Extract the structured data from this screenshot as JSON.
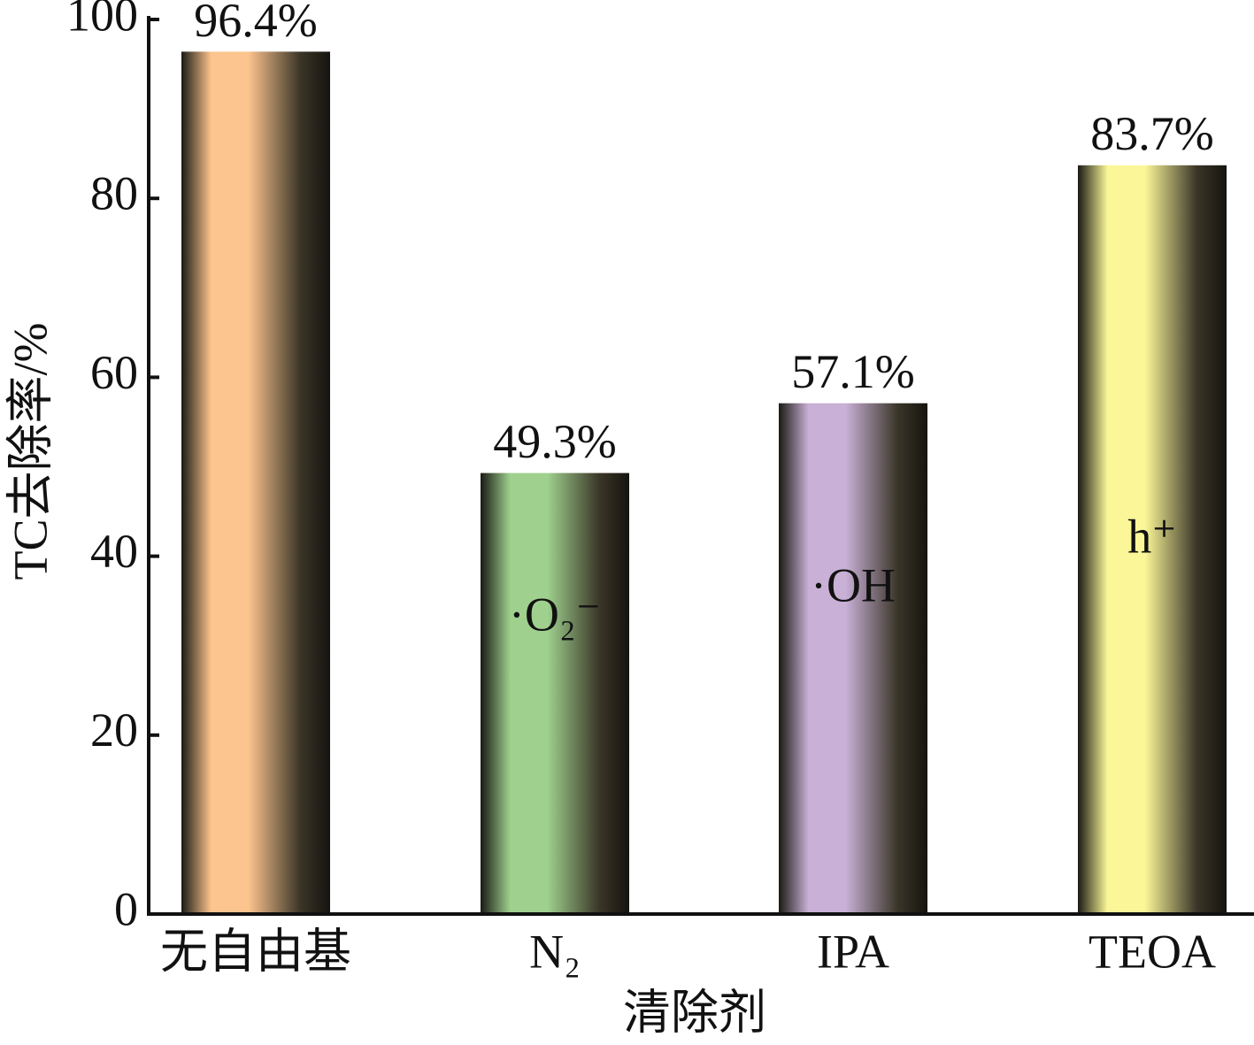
{
  "chart_data": {
    "type": "bar",
    "categories": [
      "无自由基",
      "N₂",
      "IPA",
      "TEOA"
    ],
    "values": [
      96.4,
      49.3,
      57.1,
      83.7
    ],
    "value_labels": [
      "96.4%",
      "49.3%",
      "57.1%",
      "83.7%"
    ],
    "colors": [
      "#fcc48e",
      "#9fd08e",
      "#c9b0d6",
      "#fbf798"
    ],
    "bar_annotations": [
      null,
      "·O₂⁻",
      "·OH",
      "h⁺"
    ],
    "ylabel": "TC去除率/%",
    "xlabel": "清除剂",
    "ylim": [
      0,
      100
    ],
    "yticks": [
      0,
      20,
      40,
      60,
      80,
      100
    ],
    "grid": false
  }
}
